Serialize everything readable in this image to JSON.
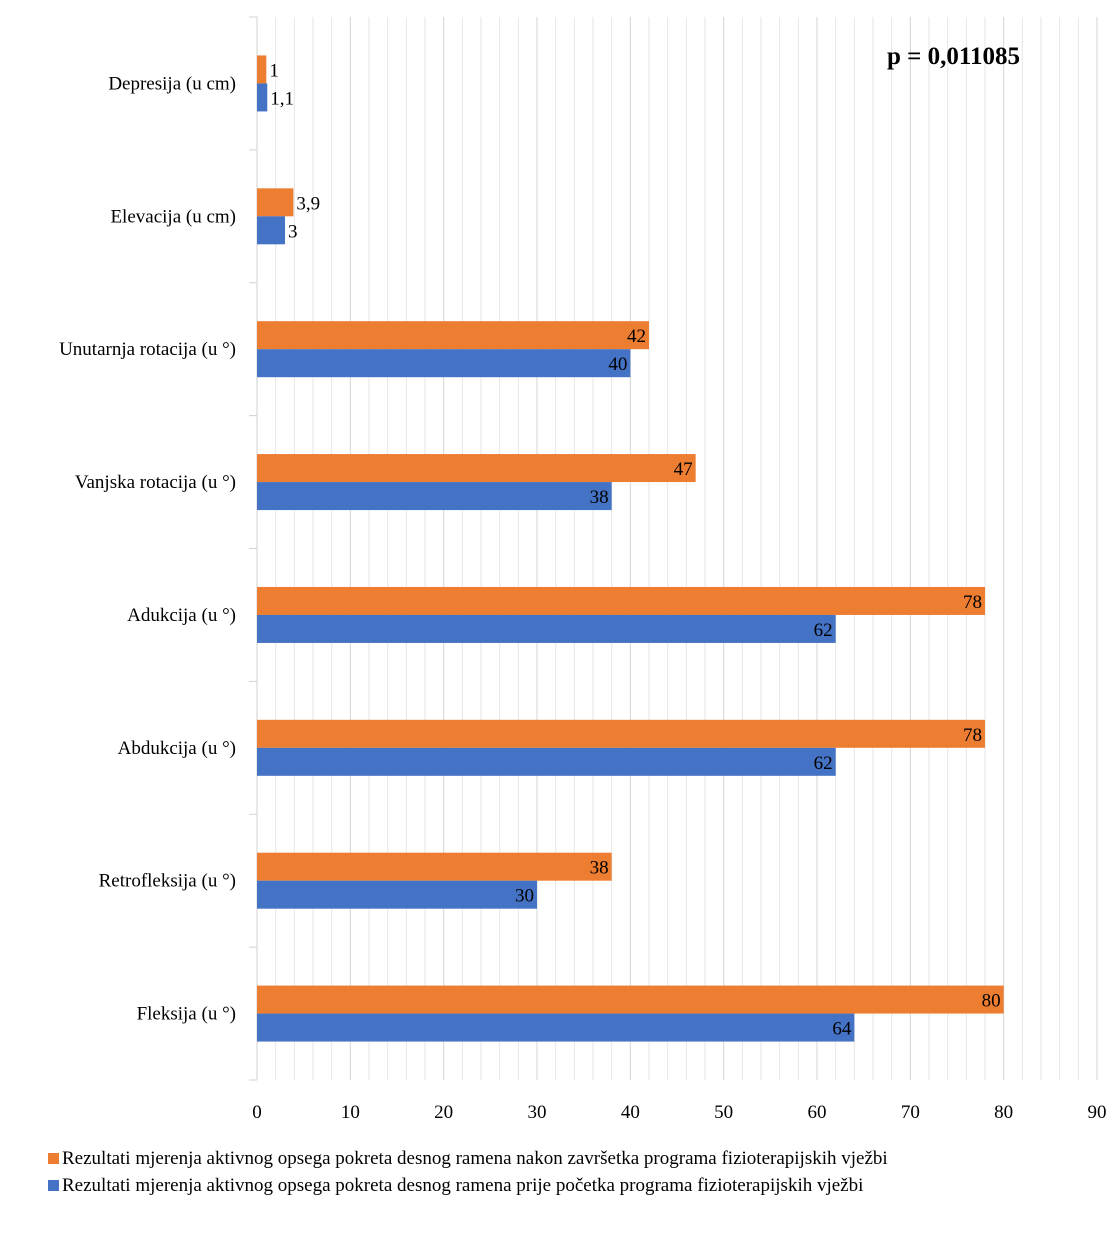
{
  "chart_data": {
    "type": "bar",
    "orientation": "horizontal",
    "categories": [
      "Depresija (u cm)",
      "Elevacija (u cm)",
      "Unutarnja rotacija (u °)",
      "Vanjska rotacija (u °)",
      "Adukcija (u °)",
      "Abdukcija (u °)",
      "Retrofleksija (u °)",
      "Fleksija (u °)"
    ],
    "series": [
      {
        "name": "Rezultati mjerenja aktivnog opsega pokreta desnog ramena nakon završetka programa fizioterapijskih vježbi",
        "color": "#ED7D31",
        "values": [
          1,
          3.9,
          42,
          47,
          78,
          78,
          38,
          80
        ],
        "labels": [
          "1",
          "3,9",
          "42",
          "47",
          "78",
          "78",
          "38",
          "80"
        ]
      },
      {
        "name": "Rezultati mjerenja aktivnog opsega pokreta desnog ramena prije početka programa fizioterapijskih vježbi",
        "color": "#4472C4",
        "values": [
          1.1,
          3,
          40,
          38,
          62,
          62,
          30,
          64
        ],
        "labels": [
          "1,1",
          "3",
          "40",
          "38",
          "62",
          "62",
          "30",
          "64"
        ]
      }
    ],
    "xlim": [
      0,
      90
    ],
    "xticks": [
      "0",
      "10",
      "20",
      "30",
      "40",
      "50",
      "60",
      "70",
      "80",
      "90"
    ],
    "annotation": "p = 0,011085",
    "grid": "vertical",
    "legend_position": "bottom"
  }
}
